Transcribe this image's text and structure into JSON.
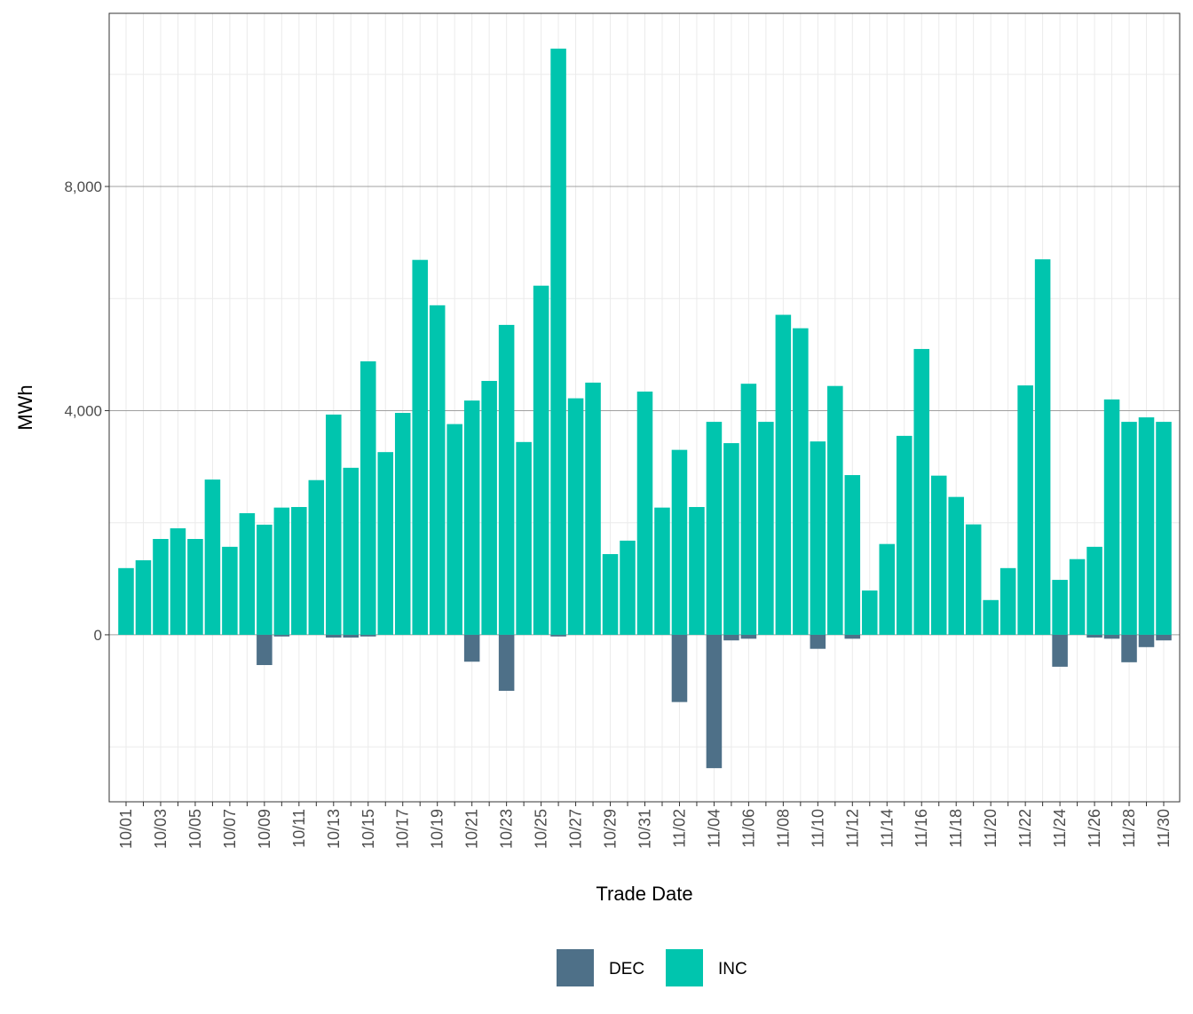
{
  "chart_data": {
    "type": "bar",
    "stacked": true,
    "xlabel": "Trade Date",
    "ylabel": "MWh",
    "ylim": [
      -2980,
      11090
    ],
    "y_major_ticks": [
      0,
      4000,
      8000
    ],
    "y_tick_labels": [
      "0",
      "4,000",
      "8,000"
    ],
    "y_minor_ticks": [
      -2000,
      2000,
      6000,
      10000
    ],
    "grid": true,
    "legend_position": "bottom",
    "categories": [
      "10/01",
      "10/02",
      "10/03",
      "10/04",
      "10/05",
      "10/06",
      "10/07",
      "10/08",
      "10/09",
      "10/10",
      "10/11",
      "10/12",
      "10/13",
      "10/14",
      "10/15",
      "10/16",
      "10/17",
      "10/18",
      "10/19",
      "10/20",
      "10/21",
      "10/22",
      "10/23",
      "10/24",
      "10/25",
      "10/26",
      "10/27",
      "10/28",
      "10/29",
      "10/30",
      "10/31",
      "11/01",
      "11/02",
      "11/03",
      "11/04",
      "11/05",
      "11/06",
      "11/07",
      "11/08",
      "11/09",
      "11/10",
      "11/11",
      "11/12",
      "11/13",
      "11/14",
      "11/15",
      "11/16",
      "11/17",
      "11/18",
      "11/19",
      "11/20",
      "11/21",
      "11/22",
      "11/23",
      "11/24",
      "11/25",
      "11/26",
      "11/27",
      "11/28",
      "11/29",
      "11/30"
    ],
    "x_tick_labels": [
      "10/01",
      "10/03",
      "10/05",
      "10/07",
      "10/09",
      "10/11",
      "10/13",
      "10/15",
      "10/17",
      "10/19",
      "10/21",
      "10/23",
      "10/25",
      "10/27",
      "10/29",
      "10/31",
      "11/02",
      "11/04",
      "11/06",
      "11/08",
      "11/10",
      "11/12",
      "11/14",
      "11/16",
      "11/18",
      "11/20",
      "11/22",
      "11/24",
      "11/26",
      "11/28",
      "11/30"
    ],
    "series": [
      {
        "name": "DEC",
        "color": "#4E7088",
        "values": [
          0,
          0,
          0,
          0,
          0,
          0,
          0,
          0,
          -540,
          -30,
          0,
          0,
          -50,
          -50,
          -30,
          0,
          0,
          0,
          0,
          0,
          -480,
          0,
          -1000,
          0,
          0,
          -30,
          0,
          0,
          0,
          0,
          0,
          0,
          -1200,
          0,
          -2380,
          -100,
          -70,
          0,
          0,
          0,
          -250,
          0,
          -70,
          0,
          0,
          0,
          0,
          0,
          0,
          0,
          0,
          0,
          0,
          0,
          -570,
          0,
          -50,
          -70,
          -490,
          -220,
          -100
        ]
      },
      {
        "name": "INC",
        "color": "#00C5AE",
        "values": [
          1190,
          1330,
          1710,
          1900,
          1710,
          2770,
          1570,
          2170,
          1965,
          2270,
          2280,
          2760,
          3930,
          2980,
          4880,
          3260,
          3960,
          6690,
          5880,
          3760,
          4180,
          4530,
          5530,
          3440,
          6230,
          10460,
          4220,
          4500,
          1440,
          1680,
          4340,
          2270,
          3300,
          2280,
          3800,
          3420,
          4480,
          3800,
          5710,
          5470,
          3450,
          4440,
          2850,
          790,
          1620,
          3550,
          5100,
          2840,
          2460,
          1970,
          620,
          1190,
          4450,
          6700,
          980,
          1350,
          1570,
          4200,
          3800,
          3880,
          3800
        ]
      }
    ]
  }
}
